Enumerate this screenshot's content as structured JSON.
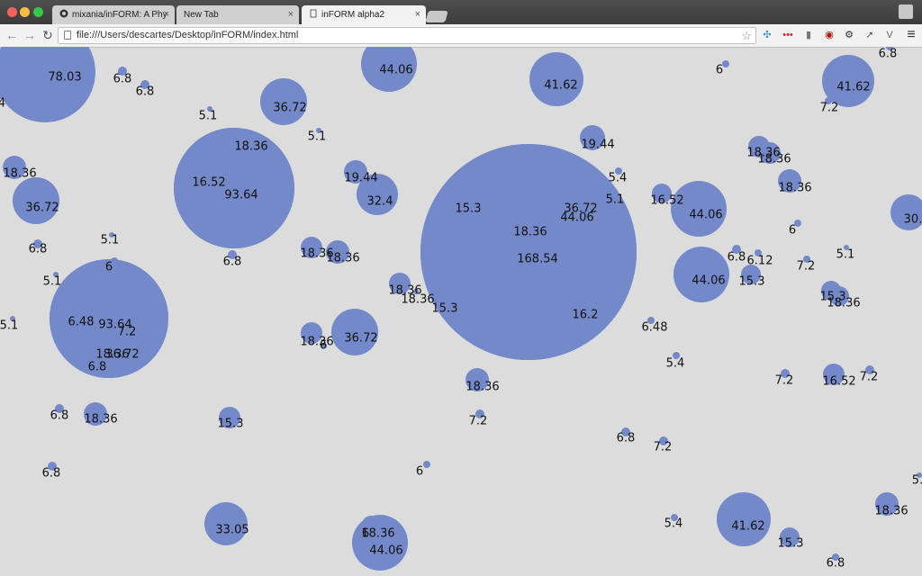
{
  "window": {
    "tabs": [
      {
        "label": "mixania/inFORM: A Physical",
        "icon": "github-icon",
        "active": false
      },
      {
        "label": "New Tab",
        "icon": "",
        "active": false
      },
      {
        "label": "inFORM alpha2",
        "icon": "page-icon",
        "active": true
      }
    ],
    "close_glyph": "×"
  },
  "toolbar": {
    "back_glyph": "←",
    "forward_glyph": "→",
    "reload_glyph": "↻",
    "url": "file:///Users/descartes/Desktop/inFORM/index.html",
    "star_glyph": "☆",
    "menu_glyph": "≡",
    "extensions": [
      {
        "name": "extension-molecule-icon",
        "glyph": "✣",
        "color": "#2a8fc0"
      },
      {
        "name": "extension-dots-icon",
        "glyph": "•••",
        "color": "#d22"
      },
      {
        "name": "extension-bookmark-icon",
        "glyph": "▮",
        "color": "#777"
      },
      {
        "name": "extension-ublock-icon",
        "glyph": "◉",
        "color": "#b11"
      },
      {
        "name": "extension-gear-icon",
        "glyph": "⚙",
        "color": "#333"
      },
      {
        "name": "extension-arrow-icon",
        "glyph": "➚",
        "color": "#555"
      },
      {
        "name": "extension-v-icon",
        "glyph": "V",
        "color": "#666"
      }
    ]
  },
  "visualization": {
    "bubble_color": "#7489c9",
    "background": "#dcdcdc",
    "bubbles": [
      {
        "label": "78.03"
      },
      {
        "label": "6.8"
      },
      {
        "label": "6.8"
      },
      {
        "label": "4"
      },
      {
        "label": "5.1"
      },
      {
        "label": "36.72"
      },
      {
        "label": "44.06"
      },
      {
        "label": "41.62"
      },
      {
        "label": "6"
      },
      {
        "label": "41.62"
      },
      {
        "label": "6.8"
      },
      {
        "label": "7.2"
      },
      {
        "label": "5.1"
      },
      {
        "label": "18.36"
      },
      {
        "label": "16.52"
      },
      {
        "label": "93.64"
      },
      {
        "label": "19.44"
      },
      {
        "label": "18.36"
      },
      {
        "label": "18.36"
      },
      {
        "label": "18.36"
      },
      {
        "label": "19.44"
      },
      {
        "label": "32.4"
      },
      {
        "label": "15.3"
      },
      {
        "label": "36.72"
      },
      {
        "label": "44.06"
      },
      {
        "label": "5.4"
      },
      {
        "label": "5.1"
      },
      {
        "label": "18.36"
      },
      {
        "label": "168.54"
      },
      {
        "label": "16.52"
      },
      {
        "label": "44.06"
      },
      {
        "label": "18.36"
      },
      {
        "label": "36.72"
      },
      {
        "label": "30."
      },
      {
        "label": "5.1"
      },
      {
        "label": "6.8"
      },
      {
        "label": "6"
      },
      {
        "label": "6.8"
      },
      {
        "label": "6"
      },
      {
        "label": "18.36"
      },
      {
        "label": "18.36"
      },
      {
        "label": "6.8"
      },
      {
        "label": "6.12"
      },
      {
        "label": "7.2"
      },
      {
        "label": "5.1"
      },
      {
        "label": "5.1"
      },
      {
        "label": "18.36"
      },
      {
        "label": "18.36"
      },
      {
        "label": "15.3"
      },
      {
        "label": "44.06"
      },
      {
        "label": "15.3"
      },
      {
        "label": "15.3"
      },
      {
        "label": "18.36"
      },
      {
        "label": "6.48"
      },
      {
        "label": "93.64"
      },
      {
        "label": "7.2"
      },
      {
        "label": "18.36"
      },
      {
        "label": "36.72"
      },
      {
        "label": "6.8"
      },
      {
        "label": "16.2"
      },
      {
        "label": "5.1"
      },
      {
        "label": "18.36"
      },
      {
        "label": "6"
      },
      {
        "label": "36.72"
      },
      {
        "label": "6.48"
      },
      {
        "label": "5.4"
      },
      {
        "label": "18.36"
      },
      {
        "label": "7.2"
      },
      {
        "label": "16.52"
      },
      {
        "label": "7.2"
      },
      {
        "label": "6.8"
      },
      {
        "label": "18.36"
      },
      {
        "label": "15.3"
      },
      {
        "label": "7.2"
      },
      {
        "label": "6.8"
      },
      {
        "label": "7.2"
      },
      {
        "label": "6.8"
      },
      {
        "label": "6"
      },
      {
        "label": "5."
      },
      {
        "label": "33.05"
      },
      {
        "label": "18.36"
      },
      {
        "label": "44.06"
      },
      {
        "label": "6"
      },
      {
        "label": "5.4"
      },
      {
        "label": "41.62"
      },
      {
        "label": "18.36"
      },
      {
        "label": "15.3"
      },
      {
        "label": "6.8"
      }
    ]
  }
}
